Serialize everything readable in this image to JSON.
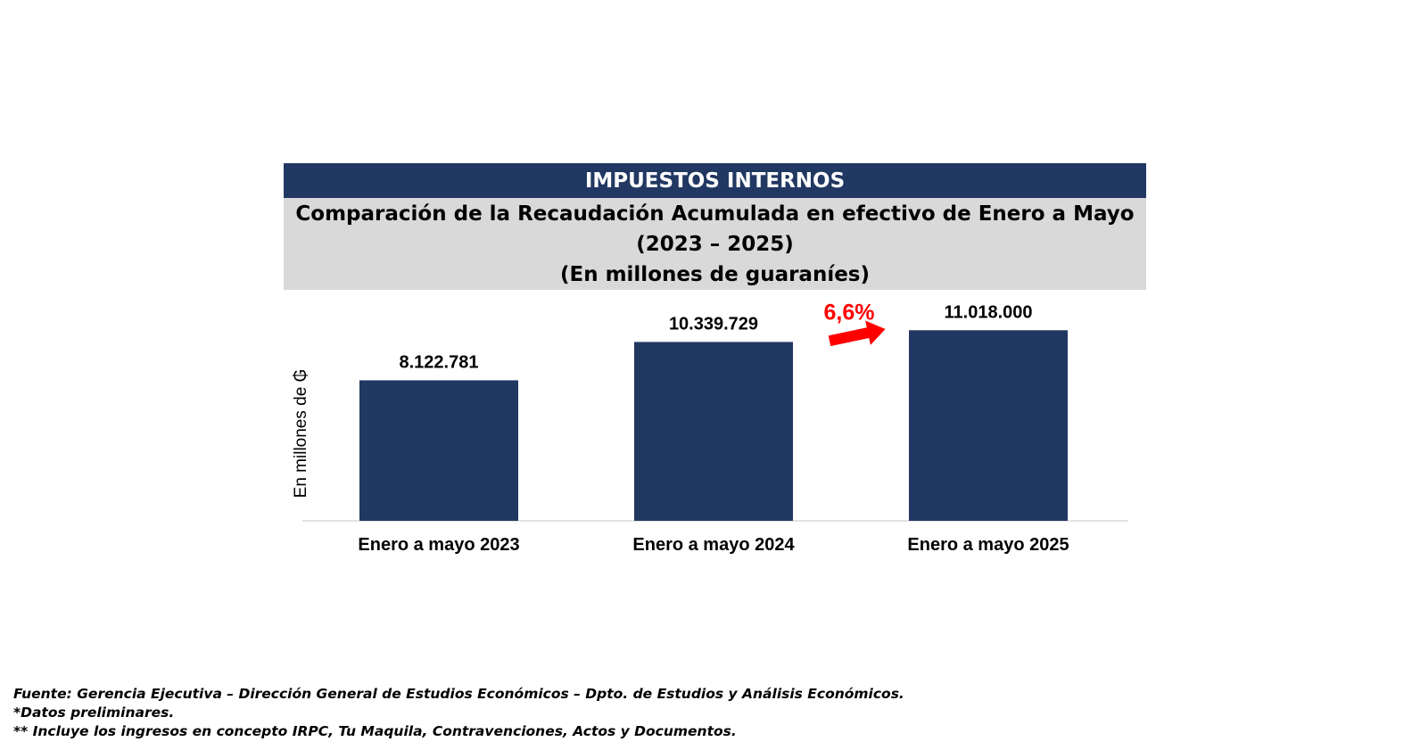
{
  "header": {
    "title": "IMPUESTOS INTERNOS",
    "subtitle_line1": "Comparación de la Recaudación Acumulada en efectivo de Enero a Mayo",
    "subtitle_line2": "(2023 – 2025)",
    "subtitle_line3": "(En millones de guaraníes)"
  },
  "chart_data": {
    "type": "bar",
    "ylabel": "En millones de ₲",
    "categories": [
      "Enero a mayo 2023",
      "Enero a mayo 2024",
      "Enero a mayo 2025"
    ],
    "values": [
      8122781,
      10339729,
      11018000
    ],
    "value_labels": [
      "8.122.781",
      "10.339.729",
      "11.018.000"
    ],
    "ylim": [
      0,
      11600000
    ],
    "bar_color": "#213862",
    "annotation": {
      "text": "6,6%",
      "color": "#ff0000",
      "between": [
        1,
        2
      ]
    },
    "grid": false,
    "legend": "none"
  },
  "footnotes": {
    "source": "Fuente: Gerencia Ejecutiva – Dirección General de Estudios Económicos – Dpto. de Estudios y Análisis Económicos.",
    "note1": "*Datos preliminares.",
    "note2": "** Incluye los ingresos en concepto IRPC, Tu Maquila, Contravenciones, Actos y Documentos."
  }
}
